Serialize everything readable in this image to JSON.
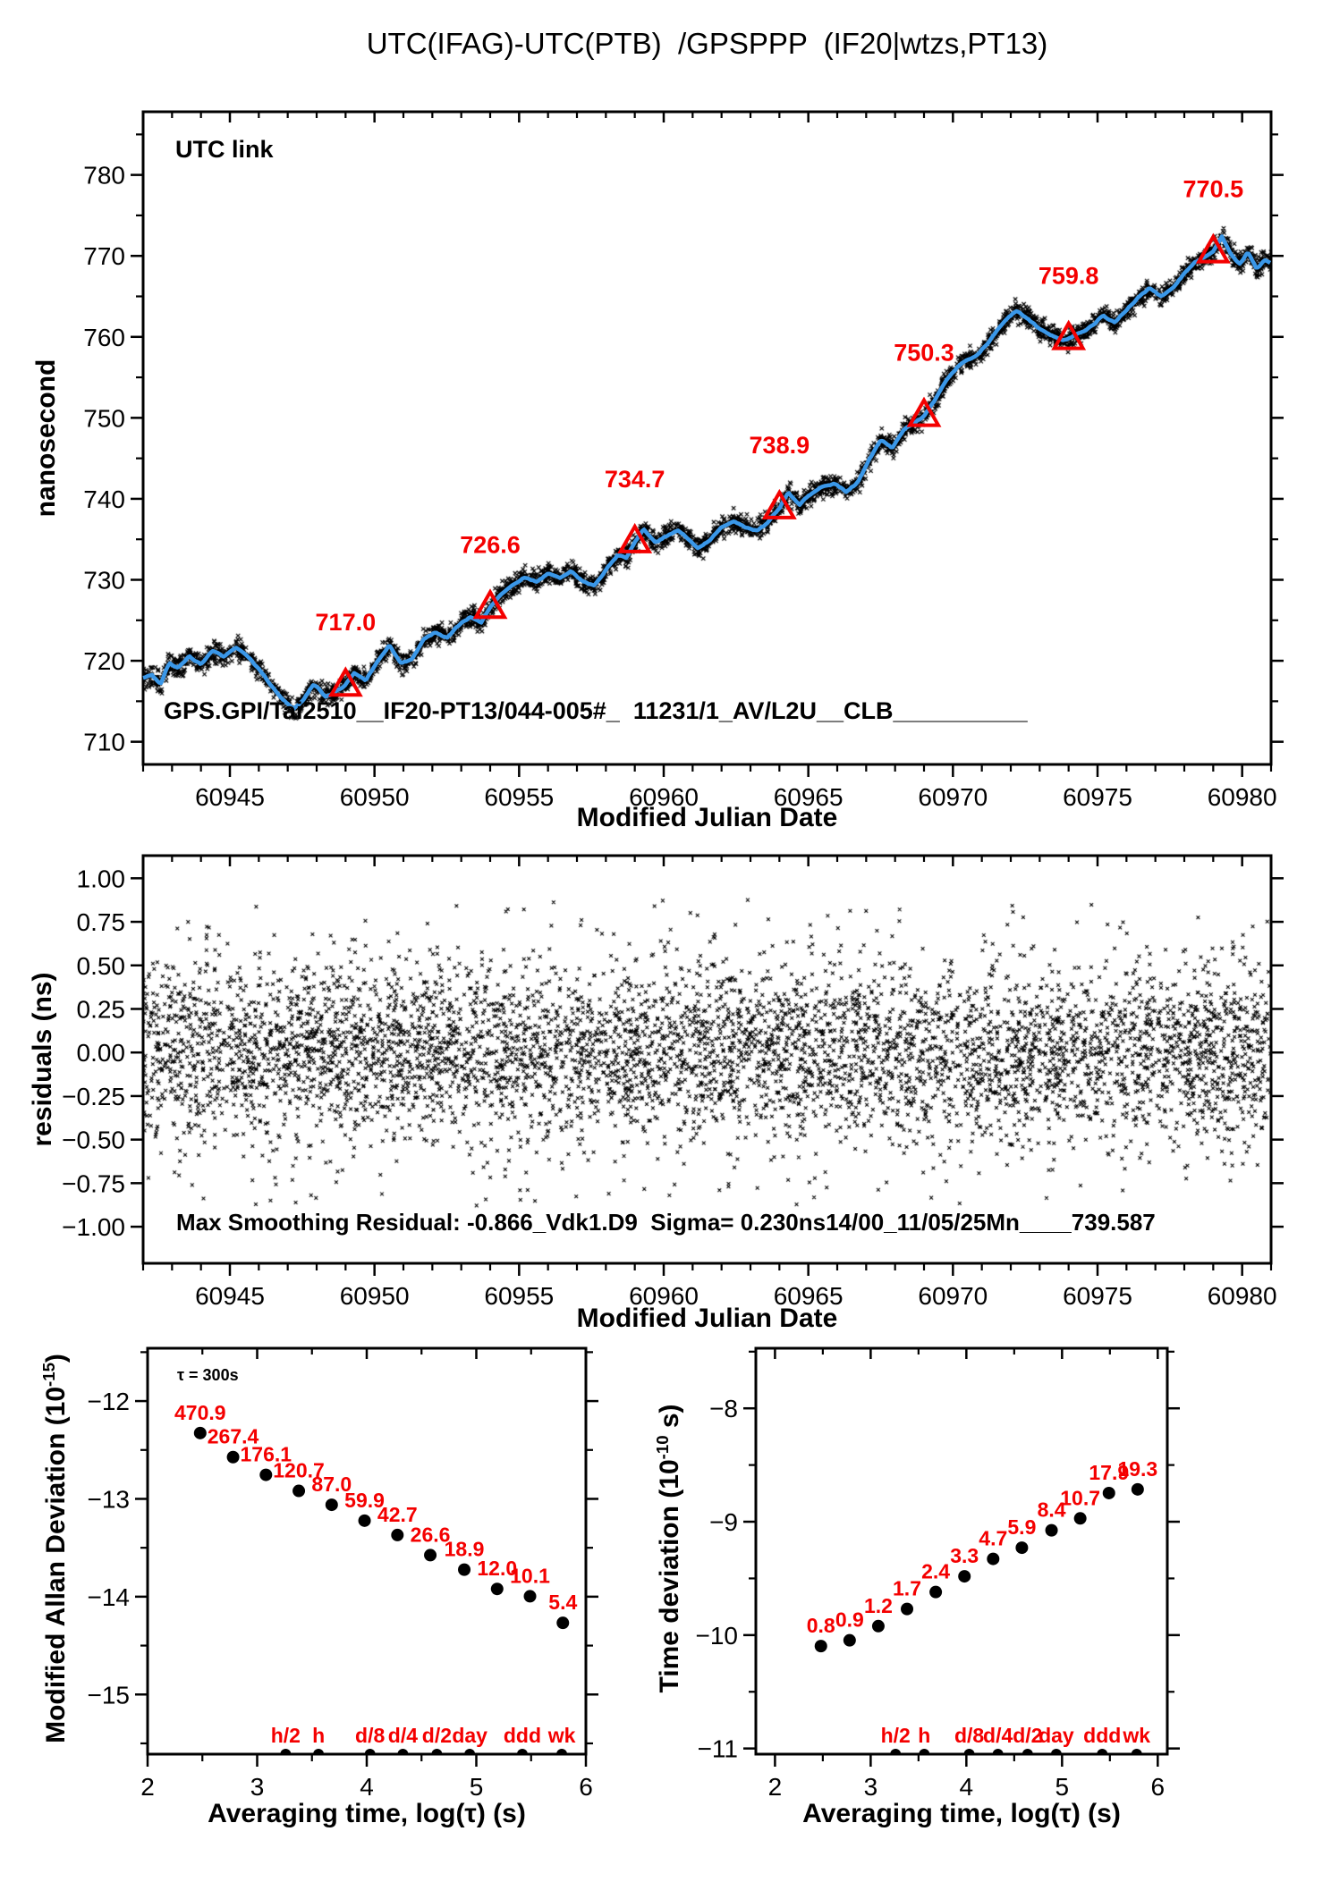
{
  "colors": {
    "accent_red": "#f40000",
    "line_blue": "#3a97e8",
    "utc_link_green": "#6b9422",
    "ink": "#000000"
  },
  "chart_data": [
    {
      "name": "utc-link-time-series",
      "type": "line",
      "title": "UTC(IFAG)-UTC(PTB)  /GPSPPP  (IF20|wtzs,PT13)",
      "xlabel": "Modified Julian Date",
      "ylabel": "nanosecond",
      "xlim": [
        60942,
        60981
      ],
      "ylim": [
        707.2,
        787.8
      ],
      "grid": false,
      "xticks": [
        {
          "v": 60945,
          "t": "60945"
        },
        {
          "v": 60950,
          "t": "60950"
        },
        {
          "v": 60955,
          "t": "60955"
        },
        {
          "v": 60960,
          "t": "60960"
        },
        {
          "v": 60965,
          "t": "60965"
        },
        {
          "v": 60970,
          "t": "60970"
        },
        {
          "v": 60975,
          "t": "60975"
        },
        {
          "v": 60980,
          "t": "60980"
        }
      ],
      "xminor": 1,
      "yticks": [
        {
          "v": 710,
          "t": "710"
        },
        {
          "v": 720,
          "t": "720"
        },
        {
          "v": 730,
          "t": "730"
        },
        {
          "v": 740,
          "t": "740"
        },
        {
          "v": 750,
          "t": "750"
        },
        {
          "v": 760,
          "t": "760"
        },
        {
          "v": 770,
          "t": "770"
        },
        {
          "v": 780,
          "t": "780"
        }
      ],
      "yminor": 5,
      "annotations": {
        "utc_link": "UTC link",
        "footer": "GPS.GPI/Tai2510__IF20-PT13/044-005#_  11231/1_AV/L2U__CLB__________"
      },
      "daily_markers": [
        {
          "x": 60949,
          "y": 717.0,
          "label": "717.0"
        },
        {
          "x": 60954,
          "y": 726.6,
          "label": "726.6"
        },
        {
          "x": 60959,
          "y": 734.7,
          "label": "734.7"
        },
        {
          "x": 60964,
          "y": 738.9,
          "label": "738.9"
        },
        {
          "x": 60969,
          "y": 750.3,
          "label": "750.3"
        },
        {
          "x": 60974,
          "y": 759.8,
          "label": "759.8"
        },
        {
          "x": 60979,
          "y": 770.5,
          "label": "770.5"
        }
      ],
      "smoothed_anchors": [
        [
          60942.0,
          717.9
        ],
        [
          60942.3,
          718.3
        ],
        [
          60942.6,
          717.1
        ],
        [
          60942.9,
          719.6
        ],
        [
          60943.2,
          719.0
        ],
        [
          60943.6,
          720.5
        ],
        [
          60944.0,
          719.5
        ],
        [
          60944.4,
          721.3
        ],
        [
          60944.8,
          720.6
        ],
        [
          60945.2,
          721.7
        ],
        [
          60945.6,
          720.6
        ],
        [
          60946.0,
          719.0
        ],
        [
          60946.4,
          717.0
        ],
        [
          60946.8,
          715.3
        ],
        [
          60947.2,
          713.9
        ],
        [
          60947.5,
          715.0
        ],
        [
          60947.9,
          717.2
        ],
        [
          60948.3,
          715.7
        ],
        [
          60948.6,
          716.1
        ],
        [
          60949.0,
          717.0
        ],
        [
          60949.3,
          718.5
        ],
        [
          60949.7,
          717.5
        ],
        [
          60950.1,
          719.8
        ],
        [
          60950.5,
          721.9
        ],
        [
          60950.9,
          719.7
        ],
        [
          60951.3,
          720.3
        ],
        [
          60951.7,
          722.8
        ],
        [
          60952.1,
          723.6
        ],
        [
          60952.5,
          722.9
        ],
        [
          60952.9,
          724.3
        ],
        [
          60953.3,
          725.4
        ],
        [
          60953.7,
          724.7
        ],
        [
          60954.0,
          726.6
        ],
        [
          60954.4,
          728.3
        ],
        [
          60954.8,
          729.4
        ],
        [
          60955.2,
          730.3
        ],
        [
          60955.6,
          729.7
        ],
        [
          60956.0,
          730.8
        ],
        [
          60956.4,
          730.2
        ],
        [
          60956.8,
          731.0
        ],
        [
          60957.2,
          729.8
        ],
        [
          60957.6,
          729.3
        ],
        [
          60958.0,
          731.4
        ],
        [
          60958.4,
          733.1
        ],
        [
          60958.7,
          732.7
        ],
        [
          60959.0,
          734.7
        ],
        [
          60959.3,
          736.3
        ],
        [
          60959.7,
          734.7
        ],
        [
          60960.1,
          735.3
        ],
        [
          60960.5,
          736.1
        ],
        [
          60960.9,
          734.9
        ],
        [
          60961.2,
          734.0
        ],
        [
          60961.6,
          735.0
        ],
        [
          60962.0,
          736.5
        ],
        [
          60962.4,
          737.3
        ],
        [
          60962.8,
          736.4
        ],
        [
          60963.2,
          736.0
        ],
        [
          60963.6,
          737.1
        ],
        [
          60964.0,
          738.9
        ],
        [
          60964.3,
          740.8
        ],
        [
          60964.7,
          739.3
        ],
        [
          60965.1,
          740.6
        ],
        [
          60965.5,
          741.5
        ],
        [
          60965.9,
          741.8
        ],
        [
          60966.3,
          740.9
        ],
        [
          60966.7,
          742.0
        ],
        [
          60967.1,
          744.8
        ],
        [
          60967.5,
          747.3
        ],
        [
          60967.9,
          746.3
        ],
        [
          60968.3,
          748.5
        ],
        [
          60968.7,
          749.5
        ],
        [
          60969.0,
          750.3
        ],
        [
          60969.4,
          752.4
        ],
        [
          60969.8,
          754.7
        ],
        [
          60970.2,
          756.5
        ],
        [
          60970.6,
          757.4
        ],
        [
          60970.9,
          757.9
        ],
        [
          60971.2,
          759.2
        ],
        [
          60971.6,
          761.2
        ],
        [
          60971.9,
          762.5
        ],
        [
          60972.2,
          763.3
        ],
        [
          60972.6,
          762.2
        ],
        [
          60973.0,
          761.0
        ],
        [
          60973.4,
          760.2
        ],
        [
          60973.8,
          759.5
        ],
        [
          60974.0,
          759.8
        ],
        [
          60974.4,
          760.5
        ],
        [
          60974.8,
          761.4
        ],
        [
          60975.2,
          762.8
        ],
        [
          60975.6,
          761.8
        ],
        [
          60976.0,
          763.3
        ],
        [
          60976.4,
          764.9
        ],
        [
          60976.8,
          766.1
        ],
        [
          60977.2,
          764.9
        ],
        [
          60977.6,
          766.0
        ],
        [
          60978.0,
          767.8
        ],
        [
          60978.4,
          769.2
        ],
        [
          60978.8,
          770.1
        ],
        [
          60979.0,
          770.5
        ],
        [
          60979.3,
          772.3
        ],
        [
          60979.6,
          770.2
        ],
        [
          60979.9,
          769.0
        ],
        [
          60980.2,
          770.5
        ],
        [
          60980.5,
          768.5
        ],
        [
          60980.8,
          769.5
        ],
        [
          60981.0,
          769.1
        ]
      ]
    },
    {
      "name": "smoothing-residuals",
      "type": "scatter",
      "xlabel": "Modified Julian Date",
      "ylabel": "residuals (ns)",
      "xlim": [
        60942,
        60981
      ],
      "ylim": [
        -1.21,
        1.13
      ],
      "grid": false,
      "xticks": [
        {
          "v": 60945,
          "t": "60945"
        },
        {
          "v": 60950,
          "t": "60950"
        },
        {
          "v": 60955,
          "t": "60955"
        },
        {
          "v": 60960,
          "t": "60960"
        },
        {
          "v": 60965,
          "t": "60965"
        },
        {
          "v": 60970,
          "t": "60970"
        },
        {
          "v": 60975,
          "t": "60975"
        },
        {
          "v": 60980,
          "t": "60980"
        }
      ],
      "xminor": 1,
      "yticks": [
        {
          "v": 1.0,
          "t": "1.00"
        },
        {
          "v": 0.75,
          "t": "0.75"
        },
        {
          "v": 0.5,
          "t": "0.50"
        },
        {
          "v": 0.25,
          "t": "0.25"
        },
        {
          "v": 0.0,
          "t": "0.00"
        },
        {
          "v": -0.25,
          "t": "−0.25"
        },
        {
          "v": -0.5,
          "t": "−0.50"
        },
        {
          "v": -0.75,
          "t": "−0.75"
        },
        {
          "v": -1.0,
          "t": "−1.00"
        }
      ],
      "yminor": null,
      "annotation": "Max Smoothing Residual: -0.866_Vdk1.D9  Sigma= 0.230ns14/00_11/05/25Mn____739.587",
      "n_points": 11231,
      "sigma_ns": 0.23,
      "max_residual_ns": -0.866
    },
    {
      "name": "modified-allan-deviation",
      "type": "scatter",
      "xlabel": "Averaging time, log(τ) (s)",
      "ylabel_parts": {
        "pre": "Modified Allan Deviation (10",
        "sup": "-15",
        "post": ")"
      },
      "annotation": "τ = 300s",
      "xlim": [
        2,
        6
      ],
      "ylim": [
        -15.61,
        -11.46
      ],
      "grid": false,
      "xticks": [
        {
          "v": 2,
          "t": "2"
        },
        {
          "v": 3,
          "t": "3"
        },
        {
          "v": 4,
          "t": "4"
        },
        {
          "v": 5,
          "t": "5"
        },
        {
          "v": 6,
          "t": "6"
        }
      ],
      "xminor": 0.5,
      "yticks": [
        {
          "v": -12,
          "t": "−12"
        },
        {
          "v": -13,
          "t": "−13"
        },
        {
          "v": -14,
          "t": "−14"
        },
        {
          "v": -15,
          "t": "−15"
        }
      ],
      "yminor": 0.5,
      "logtau": [
        2.48,
        2.78,
        3.08,
        3.38,
        3.68,
        3.98,
        4.28,
        4.58,
        4.89,
        5.19,
        5.49,
        5.79
      ],
      "values_1e15": [
        470.9,
        267.4,
        176.1,
        120.7,
        87.0,
        59.9,
        42.7,
        26.6,
        18.9,
        12.0,
        10.1,
        5.4
      ],
      "value_labels": [
        "470.9",
        "267.4",
        "176.1",
        "120.7",
        "87.0",
        "59.9",
        "42.7",
        "26.6",
        "18.9",
        "12.0",
        "10.1",
        "5.4"
      ],
      "special_ticks": [
        {
          "log": 3.26,
          "label": "h/2"
        },
        {
          "log": 3.56,
          "label": "h"
        },
        {
          "log": 4.03,
          "label": "d/8"
        },
        {
          "log": 4.33,
          "label": "d/4"
        },
        {
          "log": 4.64,
          "label": "d/2"
        },
        {
          "log": 4.94,
          "label": "day"
        },
        {
          "log": 5.42,
          "label": "ddd"
        },
        {
          "log": 5.78,
          "label": "wk"
        }
      ]
    },
    {
      "name": "time-deviation",
      "type": "scatter",
      "xlabel": "Averaging time, log(τ) (s)",
      "ylabel_parts": {
        "pre": "Time deviation (10",
        "sup": "-10",
        "post": " s)"
      },
      "xlim": [
        1.8,
        6.1
      ],
      "ylim": [
        -11.05,
        -7.47
      ],
      "grid": false,
      "xticks": [
        {
          "v": 2,
          "t": "2"
        },
        {
          "v": 3,
          "t": "3"
        },
        {
          "v": 4,
          "t": "4"
        },
        {
          "v": 5,
          "t": "5"
        },
        {
          "v": 6,
          "t": "6"
        }
      ],
      "xminor": 0.5,
      "yticks": [
        {
          "v": -8,
          "t": "−8"
        },
        {
          "v": -9,
          "t": "−9"
        },
        {
          "v": -10,
          "t": "−10"
        },
        {
          "v": -11,
          "t": "−11"
        }
      ],
      "yminor": 0.5,
      "logtau": [
        2.48,
        2.78,
        3.08,
        3.38,
        3.68,
        3.98,
        4.28,
        4.58,
        4.89,
        5.19,
        5.49,
        5.79
      ],
      "values_1e10": [
        0.8,
        0.9,
        1.2,
        1.7,
        2.4,
        3.3,
        4.7,
        5.9,
        8.4,
        10.7,
        17.9,
        19.3
      ],
      "value_labels": [
        "0.8",
        "0.9",
        "1.2",
        "1.7",
        "2.4",
        "3.3",
        "4.7",
        "5.9",
        "8.4",
        "10.7",
        "17.9",
        "19.3"
      ],
      "special_ticks": [
        {
          "log": 3.26,
          "label": "h/2"
        },
        {
          "log": 3.56,
          "label": "h"
        },
        {
          "log": 4.03,
          "label": "d/8"
        },
        {
          "log": 4.33,
          "label": "d/4"
        },
        {
          "log": 4.64,
          "label": "d/2"
        },
        {
          "log": 4.94,
          "label": "day"
        },
        {
          "log": 5.42,
          "label": "ddd"
        },
        {
          "log": 5.78,
          "label": "wk"
        }
      ]
    }
  ]
}
